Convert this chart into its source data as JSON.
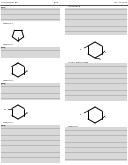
{
  "background_color": "#ffffff",
  "page_header_left": "US 8,383,637 B2",
  "page_header_right": "Apr. 26, 2011",
  "page_center": "2009",
  "text_line_color": "#444444",
  "structure_color": "#000000"
}
